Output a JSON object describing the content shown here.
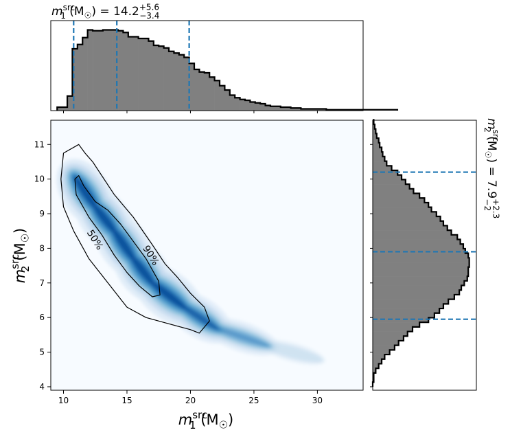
{
  "chart_data": [
    {
      "type": "histogram",
      "panel": "top-marginal",
      "title": {
        "base": "m",
        "sub": "1",
        "sup": "src",
        "unit": " (M",
        "unit_sub": "☉",
        "unit_close": ")",
        "eq": " = 14.2",
        "plus": "+5.6",
        "minus": "−3.4"
      },
      "xlim": [
        9.0,
        33.6
      ],
      "x_ticks": [
        10,
        15,
        20,
        25,
        30
      ],
      "bin_width": 0.4,
      "bin_start": 9.5,
      "densities": [
        0.04,
        0.04,
        0.17,
        0.72,
        0.77,
        0.85,
        0.94,
        0.93,
        0.93,
        0.94,
        0.94,
        0.94,
        0.93,
        0.91,
        0.86,
        0.86,
        0.84,
        0.84,
        0.81,
        0.76,
        0.75,
        0.73,
        0.69,
        0.67,
        0.65,
        0.62,
        0.55,
        0.48,
        0.45,
        0.44,
        0.39,
        0.35,
        0.29,
        0.24,
        0.18,
        0.15,
        0.13,
        0.12,
        0.1,
        0.09,
        0.08,
        0.06,
        0.05,
        0.05,
        0.04,
        0.04,
        0.03,
        0.03,
        0.02,
        0.02,
        0.02,
        0.02,
        0.02,
        0.01,
        0.01,
        0.01,
        0.01,
        0.01,
        0.01,
        0.01,
        0.01,
        0.01,
        0.01,
        0.01,
        0.01,
        0.01,
        0.01
      ],
      "quantile_lines": [
        10.8,
        14.2,
        19.9
      ],
      "fill_color": "#808080",
      "line_color": "#1f77b4"
    },
    {
      "type": "heatmap",
      "panel": "joint",
      "xlabel": {
        "base": "m",
        "sub": "1",
        "sup": "src",
        "unit": " (M",
        "unit_sub": "☉",
        "unit_close": ")"
      },
      "ylabel": {
        "base": "m",
        "sub": "2",
        "sup": "src",
        "unit": " (M",
        "unit_sub": "☉",
        "unit_close": ")"
      },
      "xlim": [
        9.0,
        33.6
      ],
      "ylim": [
        3.9,
        11.7
      ],
      "x_ticks": [
        10,
        15,
        20,
        25,
        30
      ],
      "y_ticks": [
        4,
        5,
        6,
        7,
        8,
        9,
        10,
        11
      ],
      "colormap": "Blues",
      "density_ridge": [
        [
          11.0,
          10.0
        ],
        [
          12.5,
          9.2
        ],
        [
          14.0,
          8.5
        ],
        [
          15.5,
          7.7
        ],
        [
          17.0,
          7.0
        ],
        [
          19.5,
          6.3
        ],
        [
          22.0,
          5.7
        ],
        [
          26.0,
          5.2
        ],
        [
          30.0,
          4.8
        ]
      ],
      "contours": [
        {
          "label": "90%",
          "label_at": [
            16.9,
            7.8
          ],
          "points": [
            [
              10.0,
              10.75
            ],
            [
              11.2,
              11.0
            ],
            [
              11.7,
              10.75
            ],
            [
              12.3,
              10.5
            ],
            [
              14.0,
              9.55
            ],
            [
              15.5,
              8.9
            ],
            [
              17.0,
              8.1
            ],
            [
              18.0,
              7.55
            ],
            [
              19.0,
              7.15
            ],
            [
              20.0,
              6.7
            ],
            [
              21.1,
              6.3
            ],
            [
              21.5,
              5.9
            ],
            [
              20.7,
              5.55
            ],
            [
              20.0,
              5.65
            ],
            [
              18.0,
              5.85
            ],
            [
              16.5,
              6.0
            ],
            [
              15.0,
              6.3
            ],
            [
              13.5,
              7.0
            ],
            [
              12.0,
              7.7
            ],
            [
              10.8,
              8.5
            ],
            [
              10.0,
              9.2
            ],
            [
              9.8,
              10.0
            ],
            [
              10.0,
              10.75
            ]
          ]
        },
        {
          "label": "50%",
          "label_at": [
            12.5,
            8.25
          ],
          "points": [
            [
              10.9,
              10.0
            ],
            [
              11.2,
              10.1
            ],
            [
              11.6,
              9.8
            ],
            [
              12.5,
              9.35
            ],
            [
              13.5,
              9.1
            ],
            [
              14.5,
              8.7
            ],
            [
              15.5,
              8.2
            ],
            [
              16.5,
              7.7
            ],
            [
              17.5,
              7.05
            ],
            [
              17.6,
              6.65
            ],
            [
              17.0,
              6.6
            ],
            [
              16.0,
              6.9
            ],
            [
              15.0,
              7.3
            ],
            [
              14.0,
              7.8
            ],
            [
              13.0,
              8.4
            ],
            [
              12.0,
              8.9
            ],
            [
              11.0,
              9.55
            ],
            [
              10.9,
              10.0
            ]
          ]
        }
      ],
      "contour_color": "#000000"
    },
    {
      "type": "histogram",
      "panel": "right-marginal",
      "orientation": "horizontal",
      "title": {
        "base": "m",
        "sub": "2",
        "sup": "src",
        "unit": " (M",
        "unit_sub": "☉",
        "unit_close": ")",
        "eq": " = 7.9",
        "plus": "+2.3",
        "minus": "−2"
      },
      "ylim": [
        3.9,
        11.7
      ],
      "bin_start": 4.0,
      "bin_width": 0.133,
      "densities": [
        0.0,
        0.01,
        0.01,
        0.03,
        0.06,
        0.09,
        0.12,
        0.17,
        0.22,
        0.26,
        0.31,
        0.35,
        0.4,
        0.47,
        0.56,
        0.62,
        0.67,
        0.71,
        0.76,
        0.82,
        0.87,
        0.89,
        0.92,
        0.95,
        0.96,
        0.96,
        0.97,
        0.97,
        0.96,
        0.93,
        0.91,
        0.88,
        0.85,
        0.79,
        0.75,
        0.71,
        0.68,
        0.64,
        0.59,
        0.56,
        0.52,
        0.47,
        0.41,
        0.37,
        0.33,
        0.29,
        0.25,
        0.19,
        0.14,
        0.12,
        0.1,
        0.09,
        0.07,
        0.06,
        0.04,
        0.03,
        0.02,
        0.01
      ],
      "quantile_lines": [
        5.95,
        7.9,
        10.2
      ],
      "fill_color": "#808080",
      "line_color": "#1f77b4"
    }
  ]
}
